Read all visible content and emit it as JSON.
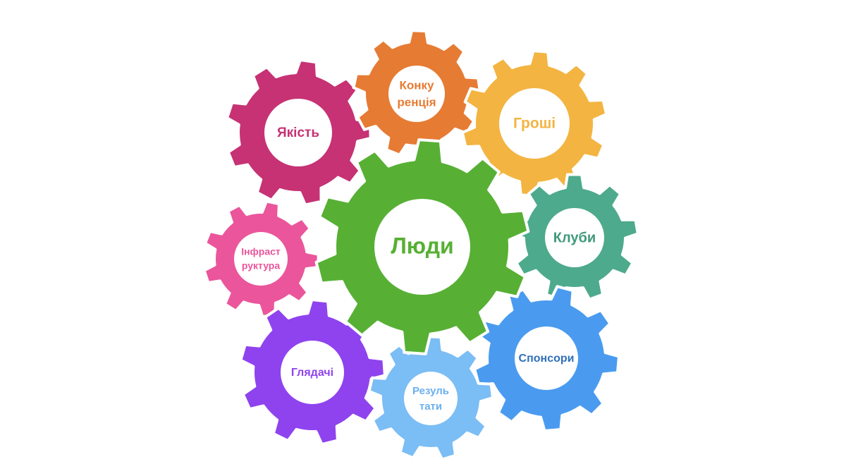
{
  "gears": [
    {
      "id": "yakist",
      "lines": [
        "Якість"
      ],
      "color": "#C63274",
      "text_color": "#C63274"
    },
    {
      "id": "konkurentsiia",
      "lines": [
        "Конку",
        "ренція"
      ],
      "color": "#E67B33",
      "text_color": "#E67B33"
    },
    {
      "id": "hroshi",
      "lines": [
        "Гроші"
      ],
      "color": "#F3B441",
      "text_color": "#F3B441"
    },
    {
      "id": "infrastruktura",
      "lines": [
        "Інфраст",
        "руктура"
      ],
      "color": "#EB559B",
      "text_color": "#EB559B"
    },
    {
      "id": "kluby",
      "lines": [
        "Клуби"
      ],
      "color": "#4DAA8C",
      "text_color": "#3F9A7C"
    },
    {
      "id": "hliadachi",
      "lines": [
        "Глядачі"
      ],
      "color": "#8F43EE",
      "text_color": "#8F43EE"
    },
    {
      "id": "sponsory",
      "lines": [
        "Спонсори"
      ],
      "color": "#4A9BF0",
      "text_color": "#2F6FB8"
    },
    {
      "id": "rezultaty",
      "lines": [
        "Резуль",
        "тати"
      ],
      "color": "#7BBDF5",
      "text_color": "#6AB0EE"
    },
    {
      "id": "liudy",
      "lines": [
        "Люди"
      ],
      "color": "#57B034",
      "text_color": "#57B034"
    }
  ]
}
